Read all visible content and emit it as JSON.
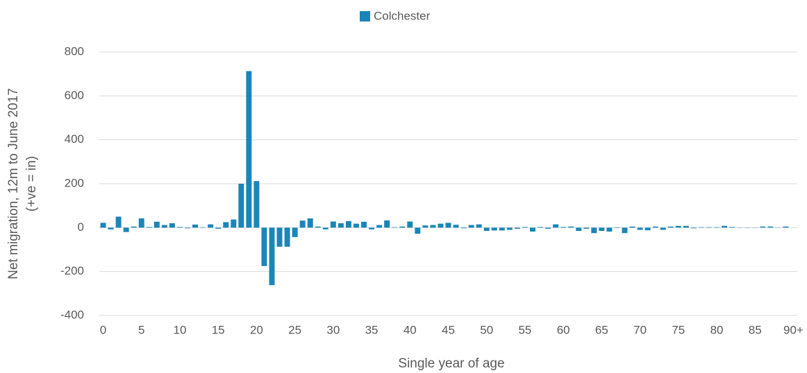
{
  "chart_data": {
    "type": "bar",
    "series": [
      {
        "name": "Colchester",
        "color": "#1b85b8",
        "values": [
          22,
          -8,
          50,
          -20,
          5,
          42,
          3,
          27,
          12,
          20,
          3,
          -3,
          14,
          2,
          15,
          -5,
          25,
          37,
          200,
          713,
          212,
          -175,
          -262,
          -87,
          -87,
          -43,
          32,
          42,
          5,
          -8,
          28,
          20,
          30,
          18,
          27,
          -8,
          12,
          33,
          2,
          5,
          28,
          -28,
          10,
          12,
          18,
          22,
          13,
          -3,
          12,
          15,
          -15,
          -13,
          -13,
          -10,
          -5,
          3,
          -18,
          3,
          -5,
          15,
          3,
          5,
          -15,
          -5,
          -25,
          -15,
          -18,
          -2,
          -25,
          5,
          -10,
          -12,
          5,
          -10,
          5,
          8,
          8,
          -3,
          2,
          2,
          2,
          8,
          3,
          1,
          1,
          1,
          5,
          5,
          1,
          5,
          0
        ]
      }
    ],
    "categories": [
      "0",
      null,
      null,
      null,
      null,
      "5",
      null,
      null,
      null,
      null,
      "10",
      null,
      null,
      null,
      null,
      "15",
      null,
      null,
      null,
      null,
      "20",
      null,
      null,
      null,
      null,
      "25",
      null,
      null,
      null,
      null,
      "30",
      null,
      null,
      null,
      null,
      "35",
      null,
      null,
      null,
      null,
      "40",
      null,
      null,
      null,
      null,
      "45",
      null,
      null,
      null,
      null,
      "50",
      null,
      null,
      null,
      null,
      "55",
      null,
      null,
      null,
      null,
      "60",
      null,
      null,
      null,
      null,
      "65",
      null,
      null,
      null,
      null,
      "70",
      null,
      null,
      null,
      null,
      "75",
      null,
      null,
      null,
      null,
      "80",
      null,
      null,
      null,
      null,
      "85",
      null,
      null,
      null,
      null,
      "90+"
    ],
    "xlabel": "Single year of age",
    "ylabel": [
      "Net migration, 12m to June 2017",
      "(+ve = in)"
    ],
    "ylim": [
      -400,
      800
    ],
    "yticks": [
      -400,
      -200,
      0,
      200,
      400,
      600,
      800
    ],
    "grid": true,
    "legend": "top"
  }
}
